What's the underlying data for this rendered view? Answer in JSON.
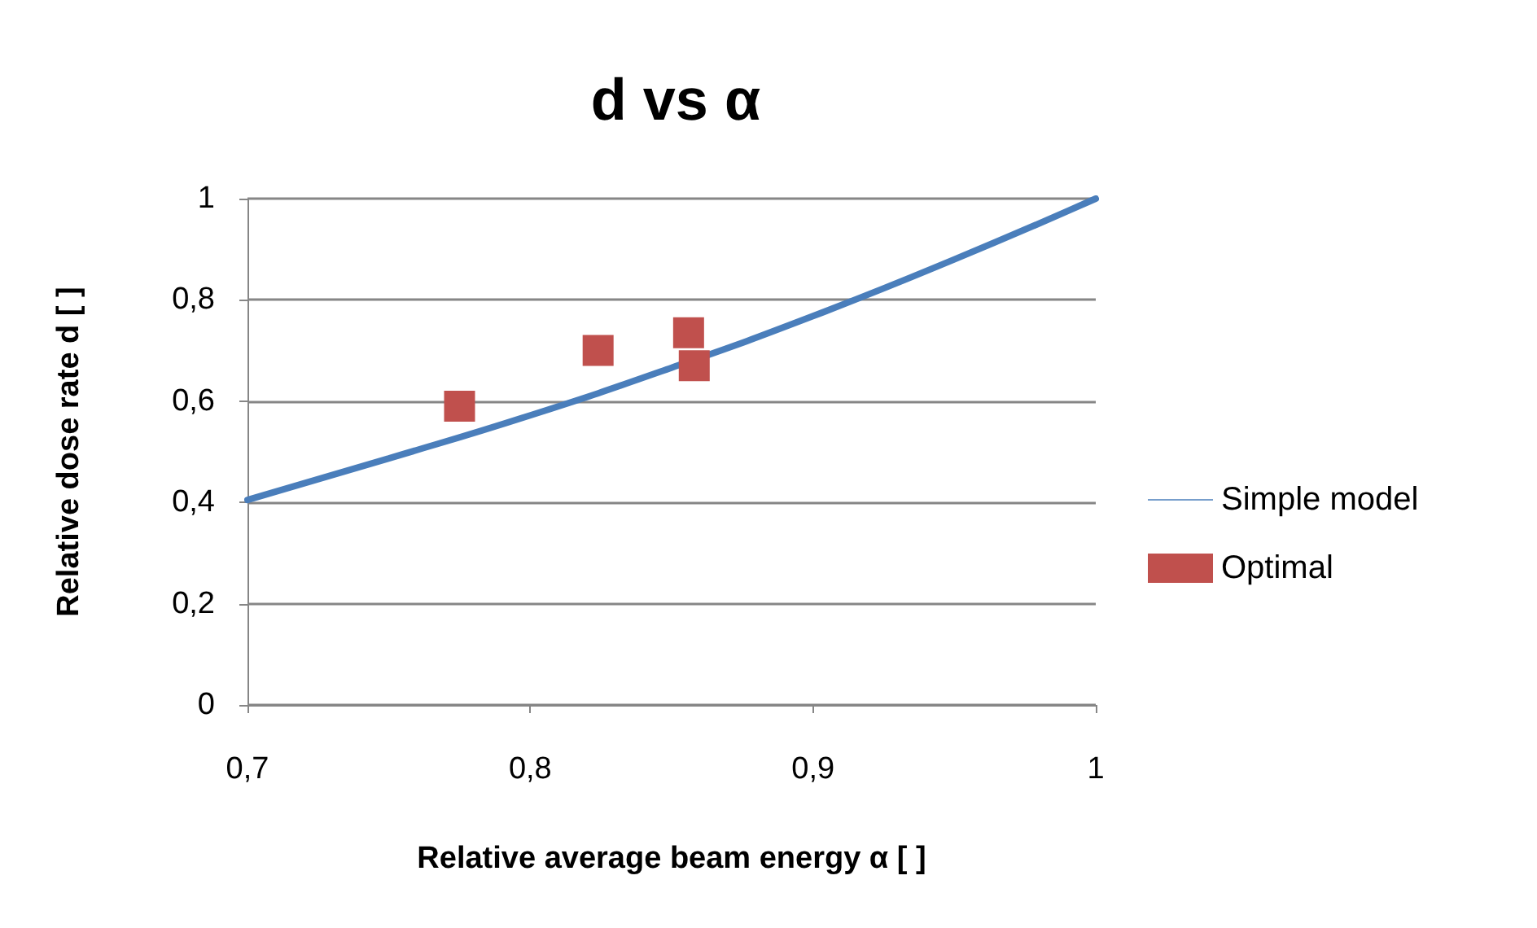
{
  "chart_data": {
    "type": "scatter",
    "title": "d vs α",
    "xlabel": "Relative average beam energy α [ ]",
    "ylabel": "Relative dose rate d [ ]",
    "xlim": [
      0.7,
      1
    ],
    "xticks": [
      {
        "value": 0.7,
        "label": "0,7"
      },
      {
        "value": 0.8,
        "label": "0,8"
      },
      {
        "value": 0.9,
        "label": "0,9"
      },
      {
        "value": 1,
        "label": "1"
      }
    ],
    "ylim": [
      0,
      1
    ],
    "yticks": [
      {
        "value": 0,
        "label": "0"
      },
      {
        "value": 0.2,
        "label": "0,2"
      },
      {
        "value": 0.4,
        "label": "0,4"
      },
      {
        "value": 0.6,
        "label": "0,6"
      },
      {
        "value": 0.8,
        "label": "0,8"
      },
      {
        "value": 1,
        "label": "1"
      }
    ],
    "grid": "y",
    "legend": "right",
    "series": [
      {
        "name": "Simple model",
        "type": "line",
        "color": "#4a7ebb",
        "marker": "none",
        "line_style": "solid",
        "x": [
          0.7,
          0.75,
          0.8,
          0.85,
          0.9,
          0.95,
          1
        ],
        "values": [
          0.405,
          0.487,
          0.572,
          0.666,
          0.768,
          0.88,
          1
        ]
      },
      {
        "name": "Optimal",
        "type": "scatter",
        "color": "#c0504d",
        "marker": "square",
        "x": [
          0.775,
          0.824,
          0.856,
          0.858
        ],
        "values": [
          0.59,
          0.7,
          0.735,
          0.67
        ]
      }
    ]
  }
}
